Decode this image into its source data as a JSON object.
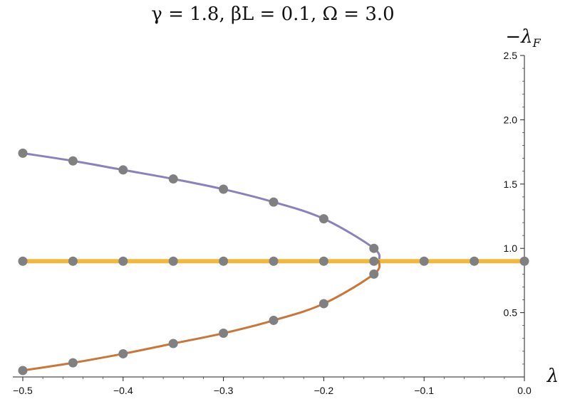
{
  "chart_data": {
    "type": "line",
    "title": "γ = 1.8, βL = 0.1, Ω = 3.0",
    "xlabel": "λ",
    "ylabel": "−λ",
    "ylabel_sub": "F",
    "xlim": [
      -0.5,
      0.0
    ],
    "ylim": [
      0.0,
      2.5
    ],
    "x_ticks": [
      -0.5,
      -0.4,
      -0.3,
      -0.2,
      -0.1,
      0.0
    ],
    "x_tick_labels": [
      "−0.5",
      "−0.4",
      "−0.3",
      "−0.2",
      "−0.1",
      "0.0"
    ],
    "y_ticks": [
      0.5,
      1.0,
      1.5,
      2.0,
      2.5
    ],
    "y_tick_labels": [
      "0.5",
      "1.0",
      "1.5",
      "2.0",
      "2.5"
    ],
    "grid": false,
    "branch_point": {
      "x": -0.145,
      "y": 0.9
    },
    "series": [
      {
        "color": "#8a82bd",
        "x": [
          -0.5,
          -0.45,
          -0.4,
          -0.35,
          -0.3,
          -0.25,
          -0.2,
          -0.15
        ],
        "y": [
          1.74,
          1.68,
          1.61,
          1.54,
          1.46,
          1.36,
          1.23,
          1.0
        ]
      },
      {
        "color": "#f0b93a",
        "x": [
          -0.5,
          -0.45,
          -0.4,
          -0.35,
          -0.3,
          -0.25,
          -0.2,
          -0.15,
          -0.1,
          -0.05,
          0.0
        ],
        "y": [
          0.9,
          0.9,
          0.9,
          0.9,
          0.9,
          0.9,
          0.9,
          0.9,
          0.9,
          0.9,
          0.9
        ]
      },
      {
        "color": "#c8763a",
        "x": [
          -0.5,
          -0.45,
          -0.4,
          -0.35,
          -0.3,
          -0.25,
          -0.2,
          -0.15
        ],
        "y": [
          0.05,
          0.11,
          0.18,
          0.26,
          0.34,
          0.44,
          0.57,
          0.8
        ]
      }
    ],
    "marker_color": "#808080"
  }
}
